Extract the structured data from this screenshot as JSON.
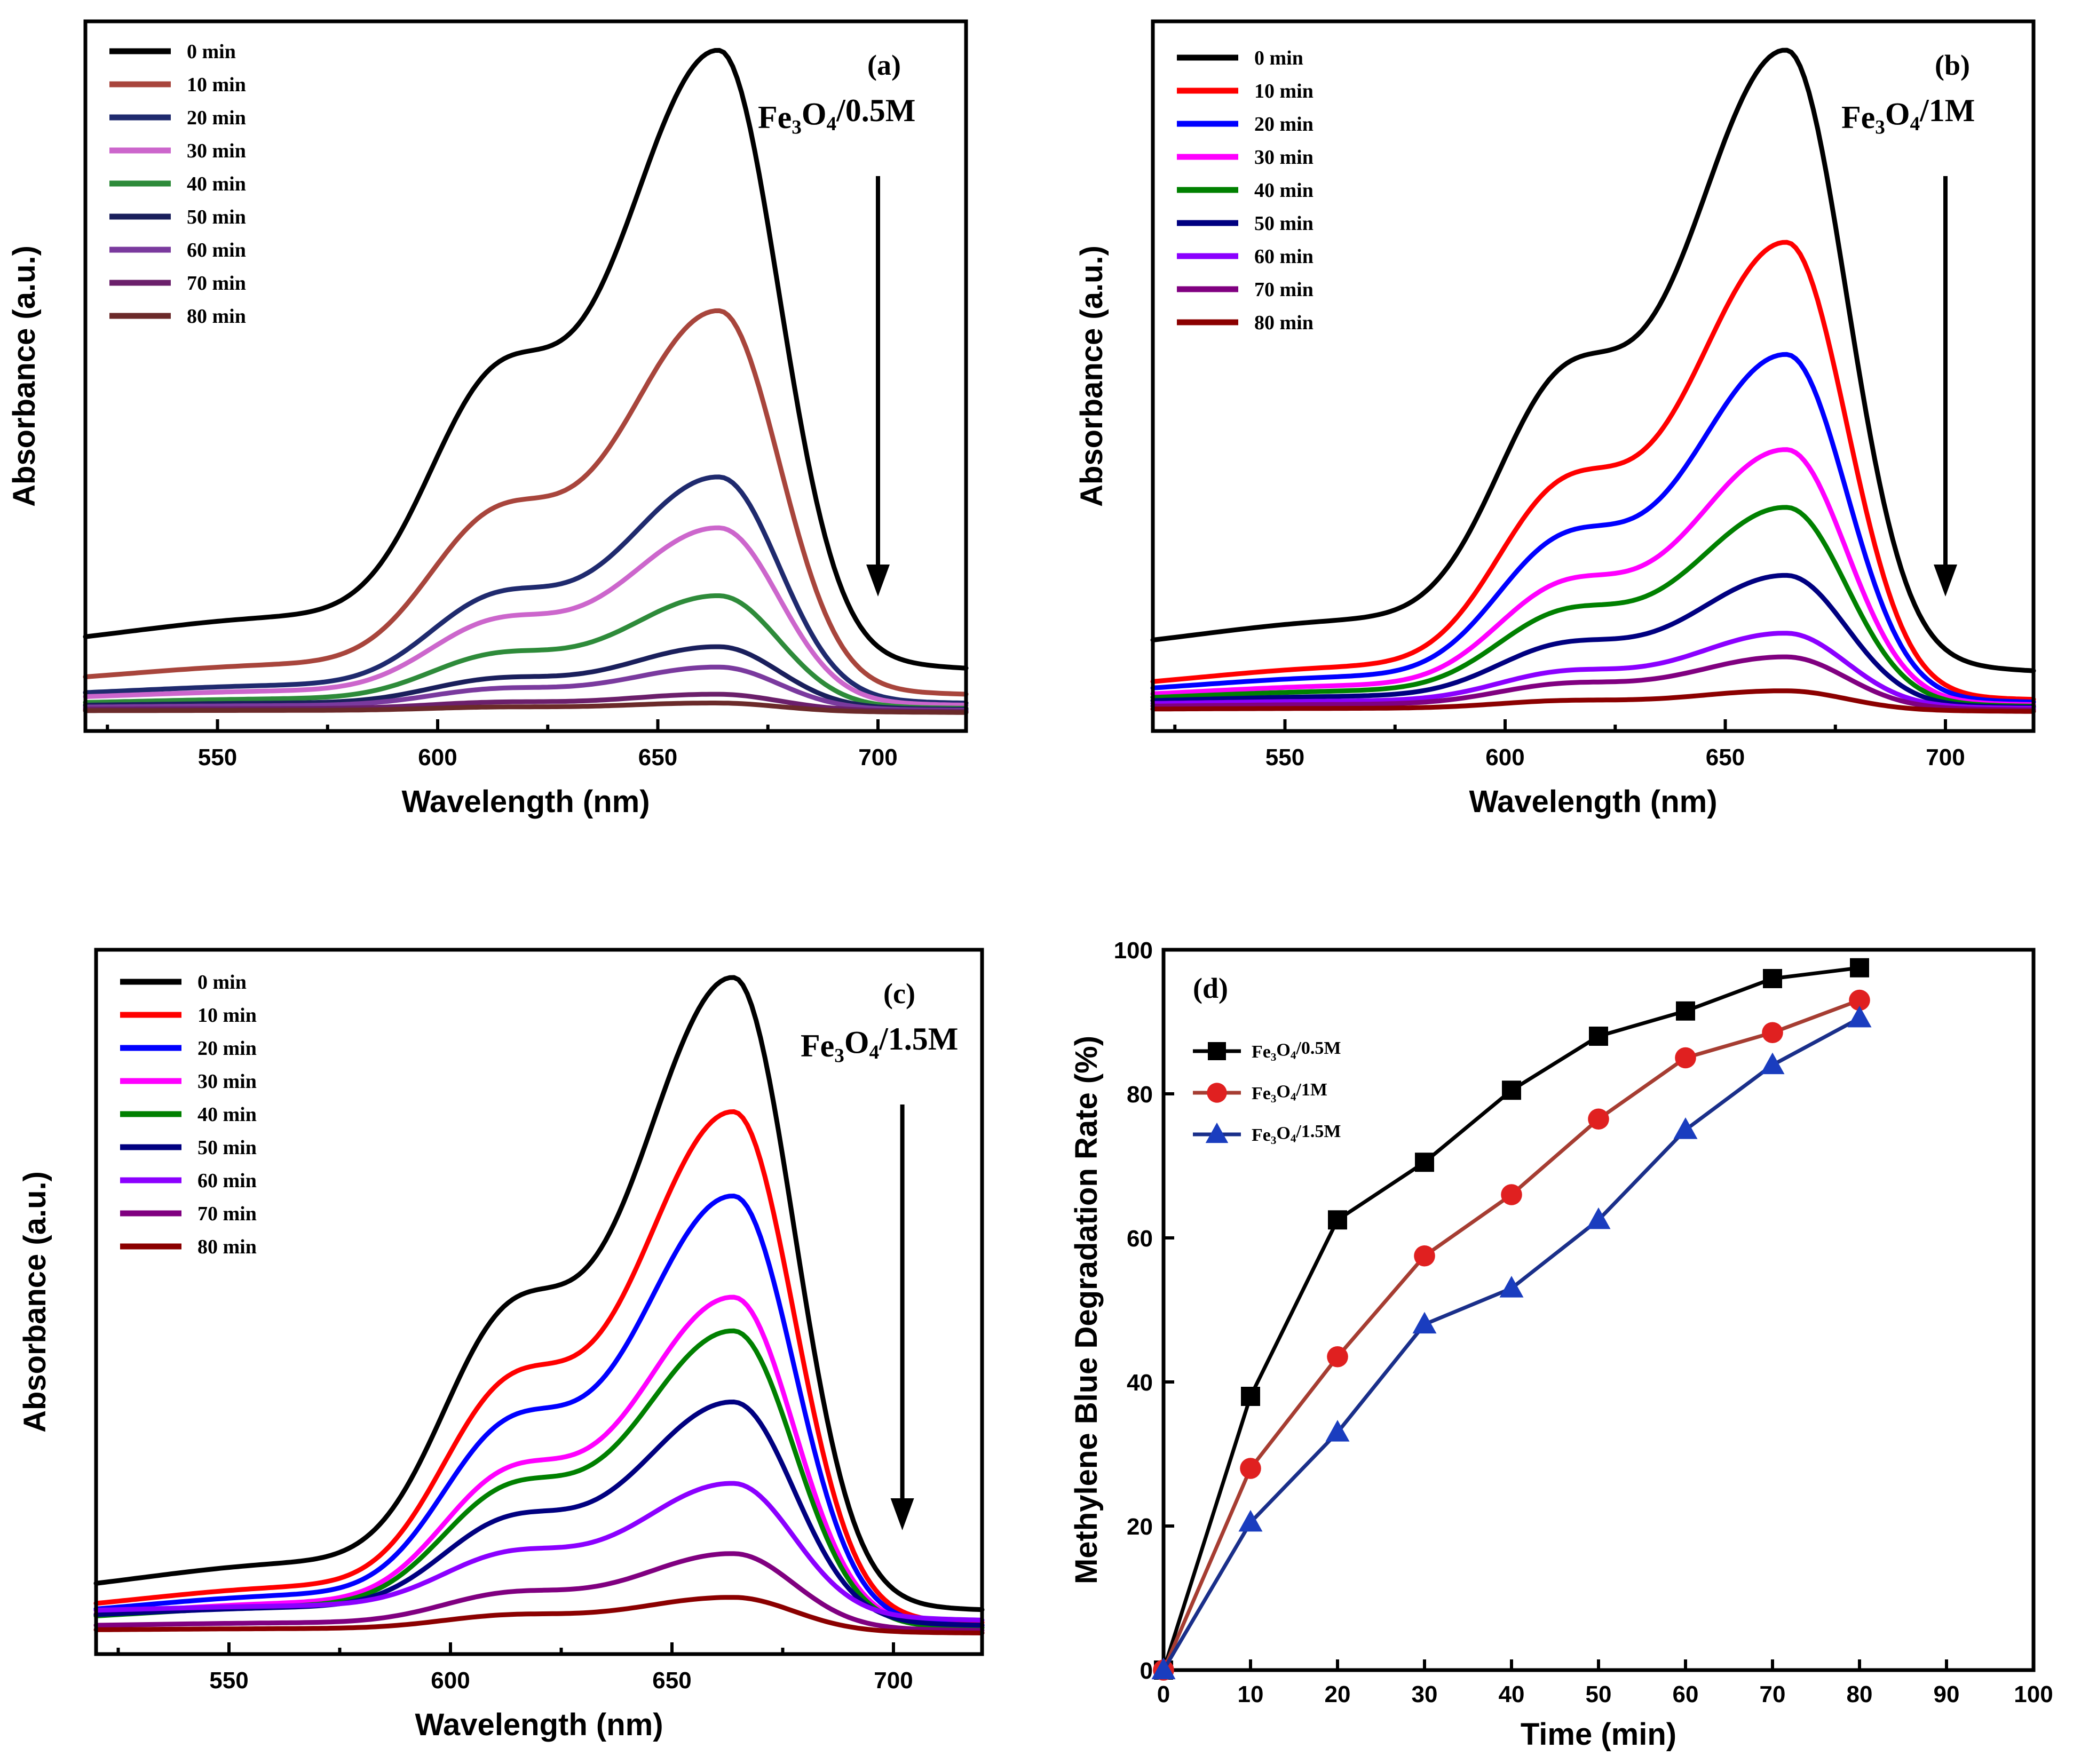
{
  "chart_data": [
    {
      "id": "a",
      "type": "line",
      "panel_label": "(a)",
      "annotation": "Fe3O4/0.5M",
      "xlabel": "Wavelength (nm)",
      "ylabel": "Absorbance (a.u.)",
      "xlim": [
        520,
        720
      ],
      "ylim": [
        0,
        1.0
      ],
      "xticks": [
        550,
        600,
        650,
        700
      ],
      "peak_x": 664,
      "shoulder_x": 613,
      "series": [
        {
          "name": "0 min",
          "color": "#000000",
          "peak": 0.985,
          "base": 0.095
        },
        {
          "name": "10 min",
          "color": "#a8453c",
          "peak": 0.6,
          "base": 0.045
        },
        {
          "name": "20 min",
          "color": "#1f2a6e",
          "peak": 0.355,
          "base": 0.028
        },
        {
          "name": "30 min",
          "color": "#cc66cc",
          "peak": 0.28,
          "base": 0.024
        },
        {
          "name": "40 min",
          "color": "#2e8b3a",
          "peak": 0.18,
          "base": 0.018
        },
        {
          "name": "50 min",
          "color": "#1a1f5c",
          "peak": 0.105,
          "base": 0.016
        },
        {
          "name": "60 min",
          "color": "#7a3a9e",
          "peak": 0.075,
          "base": 0.014
        },
        {
          "name": "70 min",
          "color": "#6b1f6b",
          "peak": 0.035,
          "base": 0.012
        },
        {
          "name": "80 min",
          "color": "#6b2a2a",
          "peak": 0.022,
          "base": 0.01
        }
      ]
    },
    {
      "id": "b",
      "type": "line",
      "panel_label": "(b)",
      "annotation": "Fe3O4/1M",
      "xlabel": "Wavelength (nm)",
      "ylabel": "Absorbance (a.u.)",
      "xlim": [
        520,
        720
      ],
      "ylim": [
        0,
        1.0
      ],
      "xticks": [
        550,
        600,
        650,
        700
      ],
      "peak_x": 664,
      "shoulder_x": 613,
      "series": [
        {
          "name": "0 min",
          "color": "#000000",
          "peak": 0.985,
          "base": 0.09
        },
        {
          "name": "10 min",
          "color": "#ff0000",
          "peak": 0.7,
          "base": 0.035
        },
        {
          "name": "20 min",
          "color": "#0000ff",
          "peak": 0.535,
          "base": 0.03
        },
        {
          "name": "30 min",
          "color": "#ff00ff",
          "peak": 0.395,
          "base": 0.025
        },
        {
          "name": "40 min",
          "color": "#008000",
          "peak": 0.31,
          "base": 0.022
        },
        {
          "name": "50 min",
          "color": "#000080",
          "peak": 0.21,
          "base": 0.02
        },
        {
          "name": "60 min",
          "color": "#8b00ff",
          "peak": 0.125,
          "base": 0.018
        },
        {
          "name": "70 min",
          "color": "#800080",
          "peak": 0.09,
          "base": 0.015
        },
        {
          "name": "80 min",
          "color": "#8b0000",
          "peak": 0.04,
          "base": 0.012
        }
      ]
    },
    {
      "id": "c",
      "type": "line",
      "panel_label": "(c)",
      "annotation": "Fe3O4/1.5M",
      "xlabel": "Wavelength (nm)",
      "ylabel": "Absorbance (a.u.)",
      "xlim": [
        520,
        720
      ],
      "ylim": [
        0,
        1.0
      ],
      "xticks": [
        550,
        600,
        650,
        700
      ],
      "peak_x": 664,
      "shoulder_x": 613,
      "series": [
        {
          "name": "0 min",
          "color": "#000000",
          "peak": 0.985,
          "base": 0.06
        },
        {
          "name": "10 min",
          "color": "#ff0000",
          "peak": 0.785,
          "base": 0.035
        },
        {
          "name": "20 min",
          "color": "#0000ff",
          "peak": 0.66,
          "base": 0.03
        },
        {
          "name": "30 min",
          "color": "#ff00ff",
          "peak": 0.51,
          "base": 0.027
        },
        {
          "name": "40 min",
          "color": "#008000",
          "peak": 0.46,
          "base": 0.025
        },
        {
          "name": "50 min",
          "color": "#000080",
          "peak": 0.355,
          "base": 0.03
        },
        {
          "name": "60 min",
          "color": "#8b00ff",
          "peak": 0.235,
          "base": 0.04
        },
        {
          "name": "70 min",
          "color": "#800080",
          "peak": 0.13,
          "base": 0.02
        },
        {
          "name": "80 min",
          "color": "#8b0000",
          "peak": 0.065,
          "base": 0.015
        }
      ]
    },
    {
      "id": "d",
      "type": "line",
      "panel_label": "(d)",
      "xlabel": "Time (min)",
      "ylabel": "Methylene Blue Degradation Rate (%)",
      "xlim": [
        0,
        100
      ],
      "ylim": [
        0,
        100
      ],
      "xticks": [
        0,
        10,
        20,
        30,
        40,
        50,
        60,
        70,
        80,
        90,
        100
      ],
      "yticks": [
        0,
        20,
        40,
        60,
        80,
        100
      ],
      "x": [
        0,
        10,
        20,
        30,
        40,
        50,
        60,
        70,
        80
      ],
      "series": [
        {
          "name": "Fe3O4/0.5M",
          "color": "#000000",
          "marker": "square",
          "values": [
            0,
            38,
            62.5,
            70.5,
            80.5,
            88,
            91.5,
            96,
            97.5
          ]
        },
        {
          "name": "Fe3O4/1M",
          "color": "#a63d32",
          "marker": "circle",
          "markerColor": "#e02020",
          "values": [
            0,
            28,
            43.5,
            57.5,
            66,
            76.5,
            85,
            88.5,
            93
          ]
        },
        {
          "name": "Fe3O4/1.5M",
          "color": "#1a2f8a",
          "marker": "triangle",
          "markerColor": "#1a3dbf",
          "values": [
            0,
            20.5,
            33,
            48,
            53,
            62.5,
            75,
            84,
            90.5
          ]
        }
      ]
    }
  ]
}
